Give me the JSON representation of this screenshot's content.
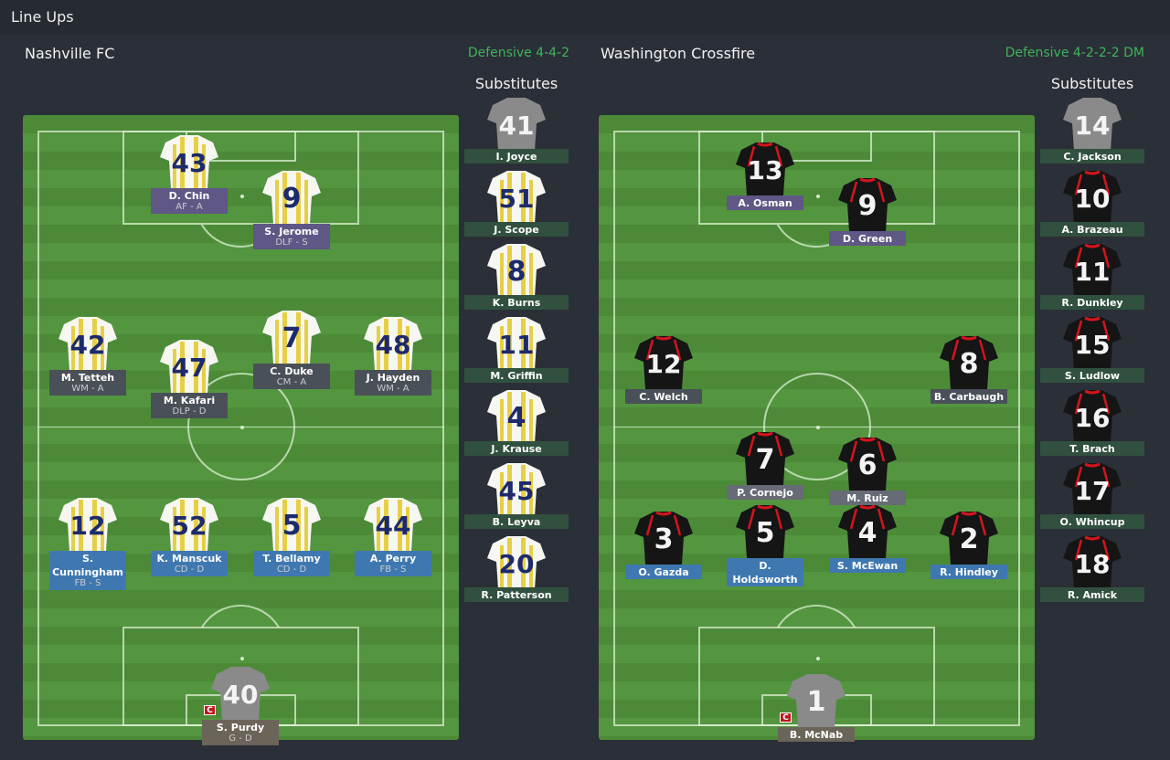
{
  "header": {
    "title": "Line Ups"
  },
  "colors": {
    "attack": "#5f5785",
    "midfield": "#4a5058",
    "defence": "#3f78b0",
    "goalkeeper": "#6b6458",
    "sub": "#31503f",
    "formation": "#3cb55a"
  },
  "home": {
    "name": "Nashville FC",
    "formation": "Defensive 4-4-2",
    "subs_label": "Substitutes",
    "kit": "yellow-white-stripes",
    "players": [
      {
        "num": "43",
        "name": "D. Chin",
        "role": "AF - A",
        "line": "attack"
      },
      {
        "num": "9",
        "name": "S. Jerome",
        "role": "DLF - S",
        "line": "attack"
      },
      {
        "num": "42",
        "name": "M. Tetteh",
        "role": "WM - A",
        "line": "midfield"
      },
      {
        "num": "47",
        "name": "M. Kafari",
        "role": "DLP - D",
        "line": "midfield"
      },
      {
        "num": "7",
        "name": "C. Duke",
        "role": "CM - A",
        "line": "midfield"
      },
      {
        "num": "48",
        "name": "J. Hayden",
        "role": "WM - A",
        "line": "midfield"
      },
      {
        "num": "12",
        "name": "S. Cunningham",
        "role": "FB - S",
        "line": "defence"
      },
      {
        "num": "52",
        "name": "K. Manscuk",
        "role": "CD - D",
        "line": "defence"
      },
      {
        "num": "5",
        "name": "T. Bellamy",
        "role": "CD - D",
        "line": "defence"
      },
      {
        "num": "44",
        "name": "A. Perry",
        "role": "FB - S",
        "line": "defence"
      },
      {
        "num": "40",
        "name": "S. Purdy",
        "role": "G - D",
        "line": "goalkeeper",
        "captain": "C"
      }
    ],
    "subs": [
      {
        "num": "41",
        "name": "I. Joyce",
        "gk": true
      },
      {
        "num": "51",
        "name": "J. Scope"
      },
      {
        "num": "8",
        "name": "K. Burns"
      },
      {
        "num": "11",
        "name": "M. Griffin"
      },
      {
        "num": "4",
        "name": "J. Krause"
      },
      {
        "num": "45",
        "name": "B. Leyva"
      },
      {
        "num": "20",
        "name": "R. Patterson"
      }
    ]
  },
  "away": {
    "name": "Washington Crossfire",
    "formation": "Defensive 4-2-2-2 DM",
    "subs_label": "Substitutes",
    "kit": "black-red",
    "players": [
      {
        "num": "13",
        "name": "A. Osman",
        "line": "attack"
      },
      {
        "num": "9",
        "name": "D. Green",
        "line": "attack"
      },
      {
        "num": "12",
        "name": "C. Welch",
        "line": "midfield"
      },
      {
        "num": "8",
        "name": "B. Carbaugh",
        "line": "midfield"
      },
      {
        "num": "7",
        "name": "P. Cornejo",
        "line": "dm"
      },
      {
        "num": "6",
        "name": "M. Ruiz",
        "line": "dm"
      },
      {
        "num": "3",
        "name": "O. Gazda",
        "line": "defence"
      },
      {
        "num": "5",
        "name": "D. Holdsworth",
        "line": "defence"
      },
      {
        "num": "4",
        "name": "S. McEwan",
        "line": "defence"
      },
      {
        "num": "2",
        "name": "R. Hindley",
        "line": "defence"
      },
      {
        "num": "1",
        "name": "B. McNab",
        "line": "goalkeeper",
        "captain": "C"
      }
    ],
    "subs": [
      {
        "num": "14",
        "name": "C. Jackson",
        "gk": true
      },
      {
        "num": "10",
        "name": "A. Brazeau"
      },
      {
        "num": "11",
        "name": "R. Dunkley"
      },
      {
        "num": "15",
        "name": "S. Ludlow"
      },
      {
        "num": "16",
        "name": "T. Brach"
      },
      {
        "num": "17",
        "name": "O. Whincup"
      },
      {
        "num": "18",
        "name": "R. Amick"
      }
    ]
  }
}
